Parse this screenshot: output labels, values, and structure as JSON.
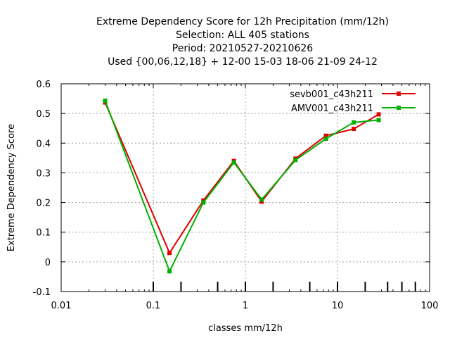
{
  "chart_data": {
    "type": "line",
    "title_lines": [
      "Extreme Dependency Score  for 12h Precipitation (mm/12h)",
      "Selection: ALL    405 stations",
      "Period: 20210527-20210626",
      "Used {00,06,12,18} + 12-00 15-03 18-06 21-09 24-12"
    ],
    "xlabel": "classes mm/12h",
    "ylabel": "Extreme Dependency Score",
    "xscale": "log",
    "xlim": [
      0.01,
      100
    ],
    "ylim": [
      -0.1,
      0.6
    ],
    "x_ticks": [
      0.01,
      0.1,
      1,
      10,
      100
    ],
    "x_tick_labels": [
      "0.01",
      "0.1",
      "1",
      "10",
      "100"
    ],
    "y_ticks": [
      -0.1,
      0,
      0.1,
      0.2,
      0.3,
      0.4,
      0.5,
      0.6
    ],
    "y_tick_labels": [
      "-0.1",
      "0",
      "0.1",
      "0.2",
      "0.3",
      "0.4",
      "0.5",
      "0.6"
    ],
    "class_marks": [
      0.1,
      0.2,
      0.5,
      1,
      2,
      5,
      10,
      20,
      35,
      50,
      70
    ],
    "grid": true,
    "legend_position": "top-right",
    "series": [
      {
        "name": "sevb001_c43h211",
        "color": "#e00000",
        "x": [
          0.03,
          0.15,
          0.35,
          0.75,
          1.5,
          3.5,
          7.5,
          15,
          28
        ],
        "y": [
          0.537,
          0.03,
          0.207,
          0.34,
          0.203,
          0.348,
          0.425,
          0.448,
          0.497
        ]
      },
      {
        "name": "AMV001_c43h211",
        "color": "#00b000",
        "x": [
          0.03,
          0.15,
          0.35,
          0.75,
          1.5,
          3.5,
          7.5,
          15,
          28
        ],
        "y": [
          0.543,
          -0.032,
          0.2,
          0.335,
          0.21,
          0.343,
          0.415,
          0.47,
          0.478
        ]
      }
    ]
  }
}
